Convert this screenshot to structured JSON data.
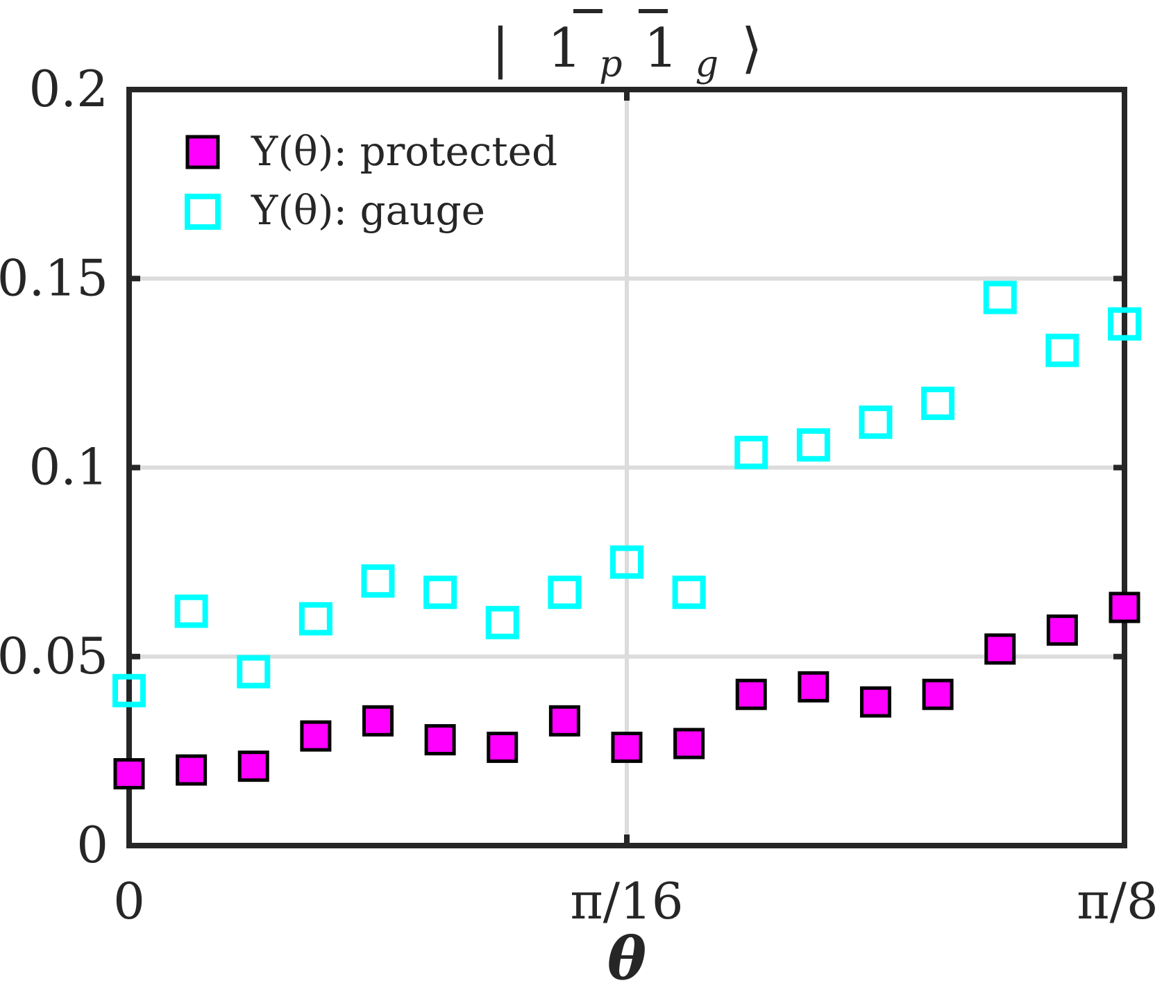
{
  "chart_data": {
    "type": "scatter",
    "title": "| 1̄p 1̄g ⟩",
    "title_parts": {
      "left": "|",
      "sym1": "1",
      "sub1": "p",
      "sym2": "1",
      "sub2": "g",
      "right": "⟩"
    },
    "xlabel": "θ",
    "ylabel": "",
    "xlim": [
      0,
      16
    ],
    "ylim": [
      0,
      0.2
    ],
    "x_ticks": [
      {
        "value": 0,
        "label": "0"
      },
      {
        "value": 8,
        "label": "π/16"
      },
      {
        "value": 16,
        "label": "π/8"
      }
    ],
    "y_ticks": [
      {
        "value": 0,
        "label": "0"
      },
      {
        "value": 0.05,
        "label": "0.05"
      },
      {
        "value": 0.1,
        "label": "0.1"
      },
      {
        "value": 0.15,
        "label": "0.15"
      },
      {
        "value": 0.2,
        "label": "0.2"
      }
    ],
    "grid": true,
    "legend_position": "top-left",
    "x": [
      0,
      1,
      2,
      3,
      4,
      5,
      6,
      7,
      8,
      9,
      10,
      11,
      12,
      13,
      14,
      15,
      16
    ],
    "series": [
      {
        "name": "Y(θ): protected",
        "legend_label": "Y(θ): protected",
        "marker": "filled-square",
        "color": "#ff00ff",
        "edge_color": "#000000",
        "values": [
          0.019,
          0.02,
          0.021,
          0.029,
          0.033,
          0.028,
          0.026,
          0.033,
          0.026,
          0.027,
          0.04,
          0.042,
          0.038,
          0.04,
          0.052,
          0.057,
          0.063
        ]
      },
      {
        "name": "Y(θ): gauge",
        "legend_label": "Y(θ): gauge",
        "marker": "open-square",
        "color": "#00ffff",
        "values": [
          0.041,
          0.062,
          0.046,
          0.06,
          0.07,
          0.067,
          0.059,
          0.067,
          0.075,
          0.067,
          0.104,
          0.106,
          0.112,
          0.117,
          0.145,
          0.131,
          0.138
        ]
      }
    ]
  }
}
